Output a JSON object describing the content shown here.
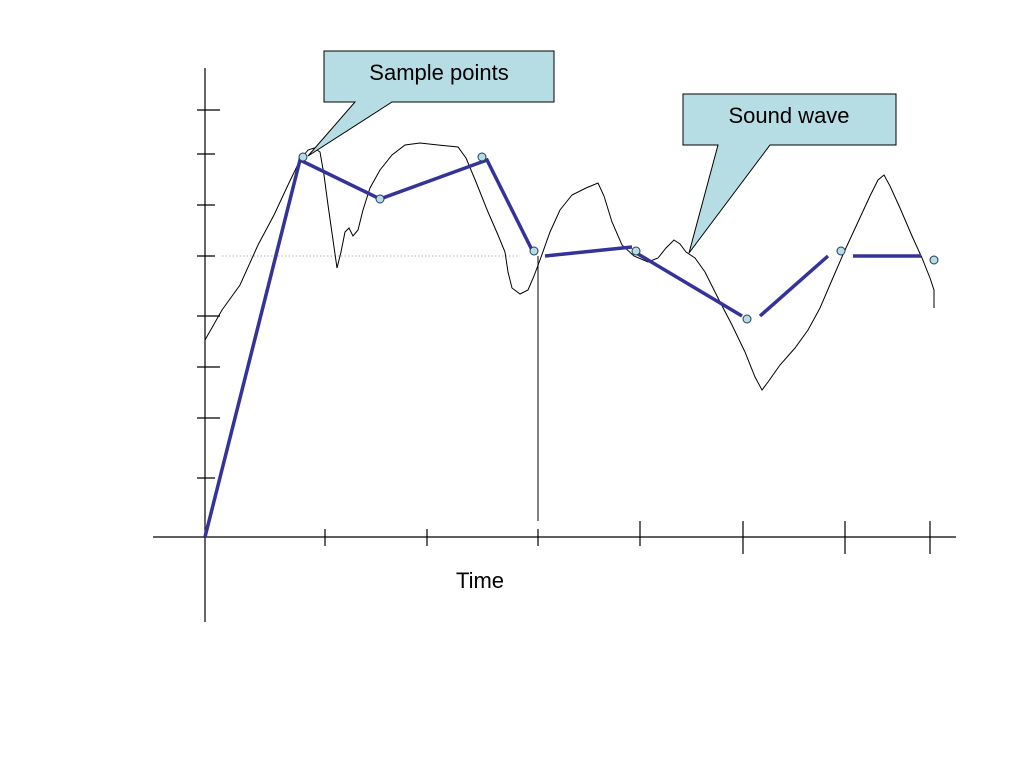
{
  "diagram": {
    "x_axis_label": "Time",
    "callouts": [
      {
        "id": "sample-points",
        "text": "Sample points"
      },
      {
        "id": "sound-wave",
        "text": "Sound wave"
      }
    ],
    "colors": {
      "background": "#ffffff",
      "axis": "#000000",
      "wave": "#000000",
      "reconstruction": "#333399",
      "sample_fill": "#b7dde4",
      "sample_stroke": "#1f3a5a",
      "callout_fill": "#b7dde4",
      "callout_stroke": "#000000",
      "midline": "#b0b0b0"
    }
  }
}
